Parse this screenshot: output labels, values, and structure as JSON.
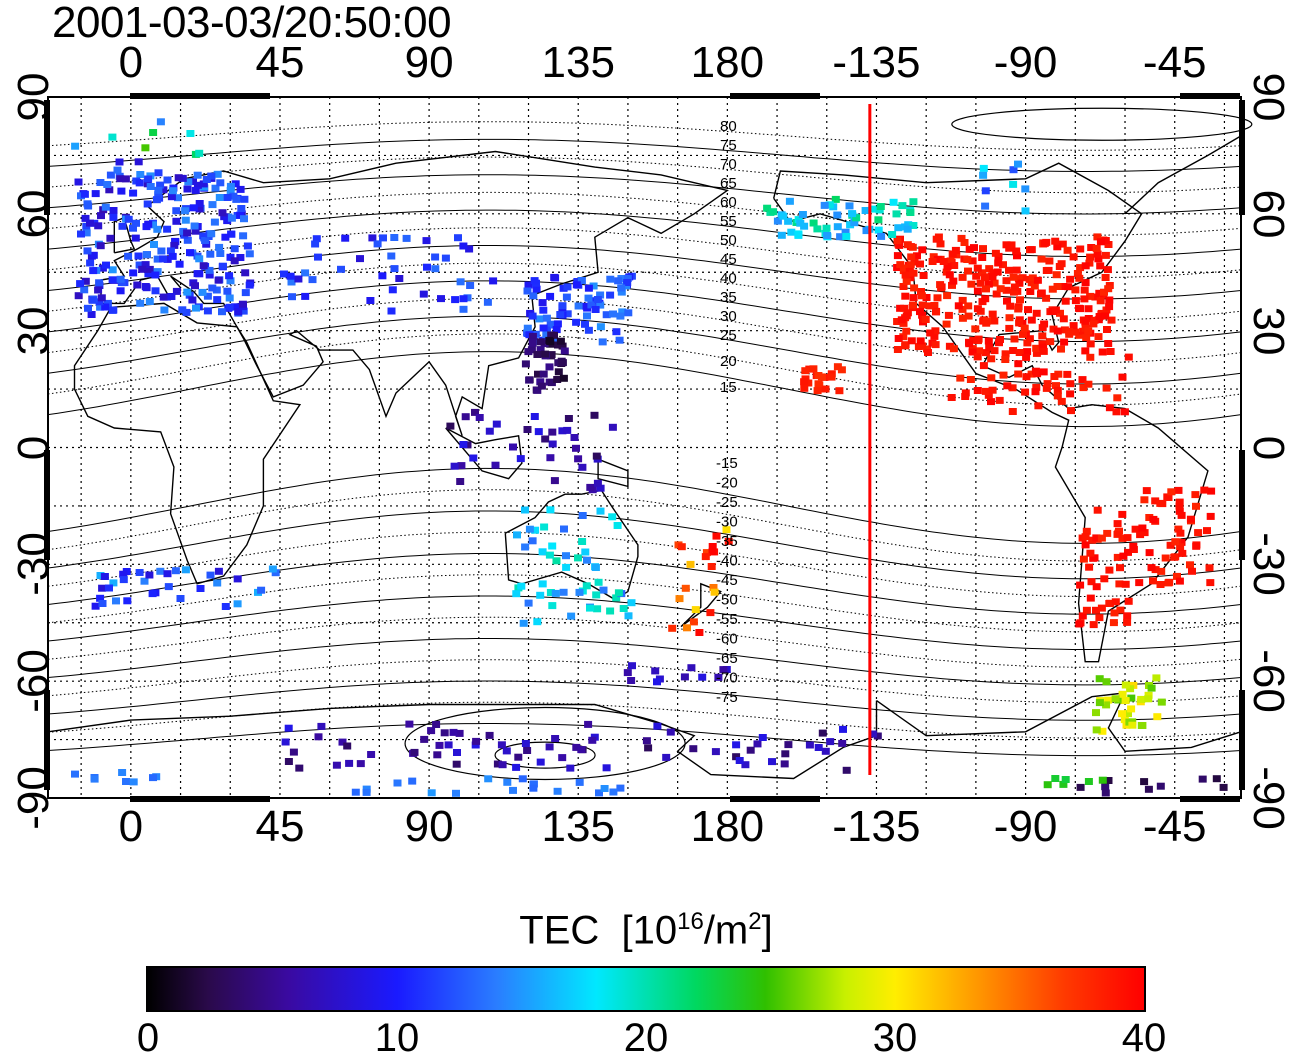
{
  "title": "2001-03-03/20:50:00",
  "map": {
    "x_ticks_top": [
      "0",
      "45",
      "90",
      "135",
      "180",
      "-135",
      "-90",
      "-45"
    ],
    "x_ticks_bottom": [
      "0",
      "45",
      "90",
      "135",
      "180",
      "-135",
      "-90",
      "-45"
    ],
    "y_ticks": [
      "90",
      "60",
      "30",
      "0",
      "-30",
      "-60",
      "-90"
    ],
    "lon_range": [
      -25,
      335
    ],
    "lat_range": [
      -90,
      90
    ],
    "terminator_longitude": -137,
    "terminator_color": "#ff0000",
    "contour_labels_north": [
      "80",
      "75",
      "70",
      "65",
      "60",
      "55",
      "50",
      "45",
      "40",
      "35",
      "30",
      "25",
      "20",
      "15"
    ],
    "contour_labels_south": [
      "-15",
      "-20",
      "-25",
      "-30",
      "-35",
      "-40",
      "-45",
      "-50",
      "-55",
      "-60",
      "-65",
      "-70",
      "-75"
    ]
  },
  "colorbar": {
    "label": "TEC",
    "units_base": "[10",
    "units_exp1": "16",
    "units_mid": "/m",
    "units_exp2": "2",
    "units_end": "]",
    "ticks": [
      "0",
      "10",
      "20",
      "30",
      "40"
    ],
    "range": [
      0,
      40
    ]
  }
}
